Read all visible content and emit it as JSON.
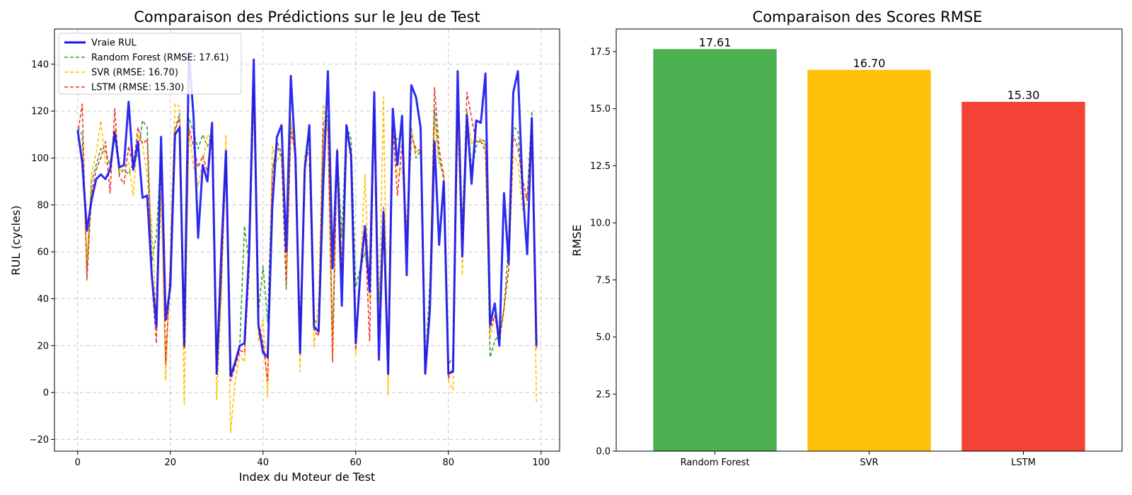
{
  "chart_data": [
    {
      "type": "line",
      "title": "Comparaison des Prédictions sur le Jeu de Test",
      "xlabel": "Index du Moteur de Test",
      "ylabel": "RUL (cycles)",
      "xlim": [
        -5,
        104
      ],
      "ylim": [
        -25,
        155
      ],
      "xticks": [
        0,
        20,
        40,
        60,
        80,
        100
      ],
      "yticks": [
        -20,
        0,
        20,
        40,
        60,
        80,
        100,
        120,
        140
      ],
      "grid": true,
      "legend_position": "top-left",
      "series": [
        {
          "name": "Vraie RUL",
          "color": "#1515f0",
          "style": "solid",
          "values": [
            112,
            98,
            69,
            82,
            91,
            93,
            91,
            95,
            111,
            96,
            97,
            124,
            95,
            107,
            83,
            84,
            50,
            28,
            109,
            31,
            45,
            110,
            113,
            20,
            145,
            118,
            66,
            97,
            90,
            115,
            8,
            60,
            103,
            7,
            13,
            20,
            21,
            60,
            142,
            29,
            17,
            15,
            79,
            109,
            114,
            60,
            135,
            100,
            17,
            95,
            114,
            28,
            26,
            89,
            137,
            53,
            103,
            37,
            114,
            101,
            21,
            51,
            71,
            43,
            128,
            14,
            77,
            8,
            121,
            97,
            118,
            50,
            131,
            126,
            113,
            8,
            35,
            107,
            63,
            90,
            8,
            9,
            137,
            58,
            118,
            89,
            116,
            115,
            136,
            29,
            38,
            20,
            85,
            55,
            128,
            137,
            87,
            59,
            117,
            20
          ]
        },
        {
          "name": "Random Forest (RMSE: 17.61)",
          "color": "#2ca02c",
          "style": "dashed",
          "values": [
            113,
            110,
            52,
            90,
            97,
            104,
            103,
            97,
            110,
            93,
            95,
            93,
            98,
            102,
            116,
            113,
            56,
            67,
            103,
            14,
            48,
            112,
            119,
            22,
            117,
            111,
            104,
            110,
            105,
            110,
            14,
            50,
            97,
            7,
            12,
            21,
            71,
            55,
            125,
            34,
            54,
            30,
            95,
            105,
            100,
            44,
            115,
            100,
            25,
            100,
            110,
            31,
            29,
            110,
            118,
            23,
            104,
            66,
            114,
            108,
            45,
            53,
            60,
            46,
            120,
            38,
            70,
            14,
            109,
            108,
            110,
            63,
            113,
            100,
            103,
            10,
            47,
            121,
            100,
            91,
            12,
            15,
            115,
            73,
            120,
            95,
            105,
            108,
            107,
            15,
            22,
            25,
            36,
            63,
            113,
            112,
            84,
            83,
            120,
            18
          ]
        },
        {
          "name": "SVR (RMSE: 16.70)",
          "color": "#ffbf00",
          "style": "dashed",
          "values": [
            108,
            104,
            56,
            93,
            102,
            116,
            97,
            98,
            113,
            94,
            96,
            98,
            84,
            110,
            106,
            92,
            71,
            31,
            84,
            5,
            58,
            123,
            122,
            -5,
            113,
            96,
            88,
            98,
            110,
            108,
            -3,
            40,
            110,
            -17,
            5,
            16,
            13,
            60,
            128,
            22,
            31,
            -2,
            105,
            99,
            101,
            52,
            117,
            98,
            9,
            101,
            96,
            19,
            39,
            123,
            110,
            15,
            104,
            57,
            101,
            103,
            16,
            52,
            93,
            39,
            114,
            28,
            126,
            -1,
            116,
            92,
            96,
            70,
            112,
            102,
            105,
            10,
            38,
            115,
            97,
            94,
            5,
            1,
            118,
            50,
            118,
            106,
            109,
            108,
            105,
            23,
            33,
            21,
            35,
            53,
            101,
            98,
            78,
            81,
            113,
            -4
          ]
        },
        {
          "name": "LSTM (RMSE: 15.30)",
          "color": "#f0322a",
          "style": "dashed",
          "values": [
            110,
            123,
            48,
            85,
            95,
            100,
            107,
            85,
            121,
            92,
            89,
            105,
            96,
            113,
            106,
            108,
            48,
            21,
            100,
            12,
            55,
            112,
            117,
            19,
            113,
            105,
            96,
            101,
            94,
            109,
            8,
            45,
            102,
            5,
            11,
            18,
            17,
            52,
            132,
            30,
            21,
            5,
            93,
            107,
            102,
            46,
            111,
            103,
            16,
            98,
            104,
            27,
            24,
            116,
            115,
            13,
            104,
            52,
            110,
            104,
            18,
            50,
            69,
            22,
            121,
            23,
            79,
            9,
            113,
            84,
            106,
            67,
            109,
            104,
            103,
            8,
            40,
            130,
            104,
            92,
            6,
            11,
            120,
            65,
            128,
            117,
            107,
            107,
            103,
            27,
            33,
            22,
            36,
            52,
            110,
            104,
            91,
            82,
            116,
            18
          ]
        }
      ]
    },
    {
      "type": "bar",
      "title": "Comparaison des Scores RMSE",
      "xlabel": "",
      "ylabel": "RMSE",
      "categories": [
        "Random Forest",
        "SVR",
        "LSTM"
      ],
      "values": [
        17.61,
        16.7,
        15.3
      ],
      "value_labels": [
        "17.61",
        "16.70",
        "15.30"
      ],
      "colors": [
        "#4caf50",
        "#ffc107",
        "#f44336"
      ],
      "ylim": [
        0,
        18.49
      ],
      "yticks": [
        "0.0",
        "2.5",
        "5.0",
        "7.5",
        "10.0",
        "12.5",
        "15.0",
        "17.5"
      ],
      "grid": false
    }
  ]
}
